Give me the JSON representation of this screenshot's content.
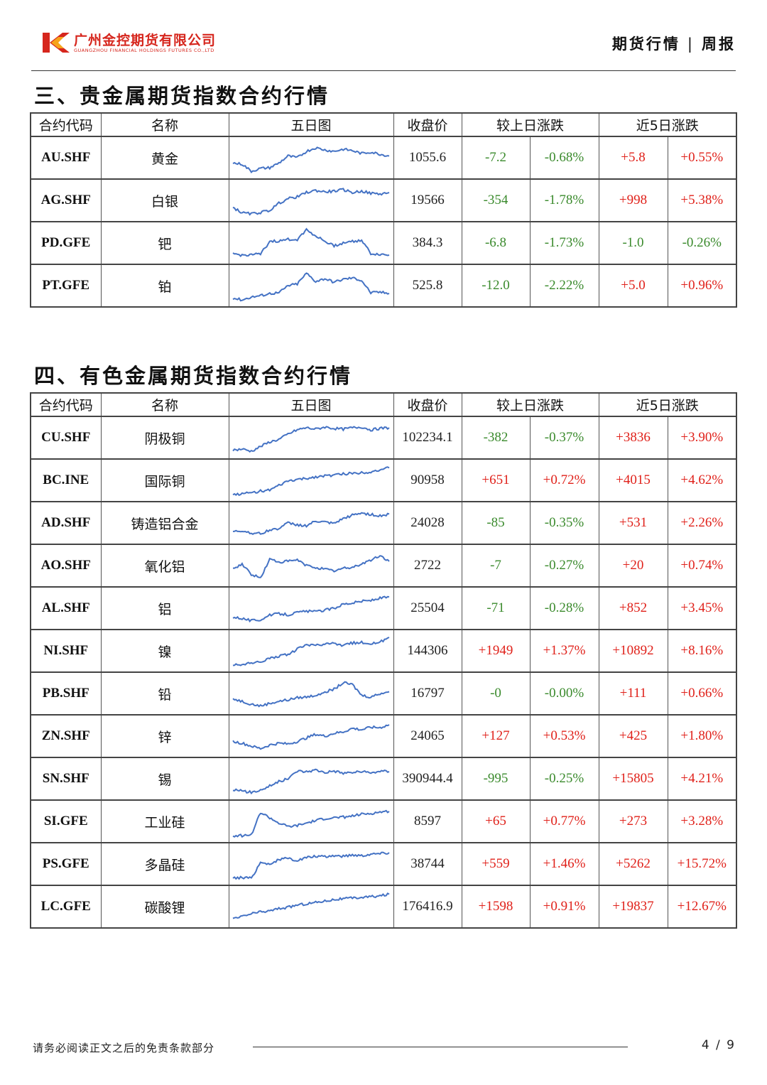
{
  "header": {
    "company_cn": "广州金控期货有限公司",
    "company_en": "GUANGZHOU FINANCIAL HOLDINGS FUTURES CO.,LTD",
    "report_type": "期货行情",
    "separator": "|",
    "frequency": "周报"
  },
  "colors": {
    "up": "#e0211a",
    "down": "#3a8a2c",
    "sparkline": "#4472c4",
    "brand": "#d6261d"
  },
  "columns": [
    "合约代码",
    "名称",
    "五日图",
    "收盘价",
    "较上日涨跌",
    "近5日涨跌"
  ],
  "sections": [
    {
      "title": "三、贵金属期货指数合约行情",
      "rows": [
        {
          "code": "AU.SHF",
          "name": "黄金",
          "close": "1055.6",
          "d_chg": "-7.2",
          "d_pct": "-0.68%",
          "w_chg": "+5.8",
          "w_pct": "+0.55%",
          "spark": [
            0.35,
            0.32,
            0.12,
            0.2,
            0.22,
            0.35,
            0.55,
            0.5,
            0.68,
            0.78,
            0.72,
            0.68,
            0.74,
            0.7,
            0.62,
            0.66,
            0.6,
            0.55
          ]
        },
        {
          "code": "AG.SHF",
          "name": "白银",
          "close": "19566",
          "d_chg": "-354",
          "d_pct": "-1.78%",
          "w_chg": "+998",
          "w_pct": "+5.38%",
          "spark": [
            0.3,
            0.15,
            0.12,
            0.16,
            0.22,
            0.42,
            0.55,
            0.6,
            0.72,
            0.78,
            0.74,
            0.76,
            0.8,
            0.72,
            0.76,
            0.7,
            0.68,
            0.72
          ]
        },
        {
          "code": "PD.GFE",
          "name": "钯",
          "close": "384.3",
          "d_chg": "-6.8",
          "d_pct": "-1.73%",
          "w_chg": "-1.0",
          "w_pct": "-0.26%",
          "spark": [
            0.2,
            0.15,
            0.18,
            0.18,
            0.55,
            0.55,
            0.6,
            0.6,
            0.88,
            0.7,
            0.55,
            0.42,
            0.5,
            0.55,
            0.58,
            0.2,
            0.18,
            0.16
          ]
        },
        {
          "code": "PT.GFE",
          "name": "铂",
          "close": "525.8",
          "d_chg": "-12.0",
          "d_pct": "-2.22%",
          "w_chg": "+5.0",
          "w_pct": "+0.96%",
          "spark": [
            0.15,
            0.1,
            0.18,
            0.22,
            0.28,
            0.3,
            0.5,
            0.55,
            0.85,
            0.62,
            0.7,
            0.6,
            0.68,
            0.72,
            0.65,
            0.3,
            0.32,
            0.28
          ]
        }
      ]
    },
    {
      "title": "四、有色金属期货指数合约行情",
      "rows": [
        {
          "code": "CU.SHF",
          "name": "阴极铜",
          "close": "102234.1",
          "d_chg": "-382",
          "d_pct": "-0.37%",
          "w_chg": "+3836",
          "w_pct": "+3.90%",
          "spark": [
            0.15,
            0.18,
            0.12,
            0.25,
            0.38,
            0.45,
            0.6,
            0.72,
            0.78,
            0.74,
            0.8,
            0.76,
            0.74,
            0.78,
            0.8,
            0.72,
            0.76,
            0.78
          ]
        },
        {
          "code": "BC.INE",
          "name": "国际铜",
          "close": "90958",
          "d_chg": "+651",
          "d_pct": "+0.72%",
          "w_chg": "+4015",
          "w_pct": "+4.62%",
          "spark": [
            0.1,
            0.12,
            0.15,
            0.2,
            0.22,
            0.35,
            0.48,
            0.52,
            0.55,
            0.6,
            0.62,
            0.65,
            0.68,
            0.7,
            0.72,
            0.74,
            0.8,
            0.85
          ]
        },
        {
          "code": "AD.SHF",
          "name": "铸造铝合金",
          "close": "24028",
          "d_chg": "-85",
          "d_pct": "-0.35%",
          "w_chg": "+531",
          "w_pct": "+2.26%",
          "spark": [
            0.25,
            0.28,
            0.22,
            0.2,
            0.3,
            0.35,
            0.5,
            0.45,
            0.42,
            0.55,
            0.52,
            0.48,
            0.62,
            0.72,
            0.78,
            0.74,
            0.7,
            0.75
          ]
        },
        {
          "code": "AO.SHF",
          "name": "氧化铝",
          "close": "2722",
          "d_chg": "-7",
          "d_pct": "-0.27%",
          "w_chg": "+20",
          "w_pct": "+0.74%",
          "spark": [
            0.4,
            0.55,
            0.25,
            0.15,
            0.68,
            0.6,
            0.62,
            0.66,
            0.5,
            0.45,
            0.4,
            0.35,
            0.42,
            0.45,
            0.55,
            0.65,
            0.78,
            0.62
          ]
        },
        {
          "code": "AL.SHF",
          "name": "铝",
          "close": "25504",
          "d_chg": "-71",
          "d_pct": "-0.28%",
          "w_chg": "+852",
          "w_pct": "+3.45%",
          "spark": [
            0.25,
            0.22,
            0.15,
            0.18,
            0.3,
            0.35,
            0.32,
            0.38,
            0.42,
            0.4,
            0.45,
            0.5,
            0.62,
            0.65,
            0.7,
            0.72,
            0.78,
            0.82
          ]
        },
        {
          "code": "NI.SHF",
          "name": "镍",
          "close": "144306",
          "d_chg": "+1949",
          "d_pct": "+1.37%",
          "w_chg": "+10892",
          "w_pct": "+8.16%",
          "spark": [
            0.1,
            0.12,
            0.15,
            0.18,
            0.3,
            0.35,
            0.4,
            0.55,
            0.68,
            0.65,
            0.68,
            0.7,
            0.66,
            0.72,
            0.74,
            0.7,
            0.75,
            0.88
          ]
        },
        {
          "code": "PB.SHF",
          "name": "铅",
          "close": "16797",
          "d_chg": "-0",
          "d_pct": "-0.00%",
          "w_chg": "+111",
          "w_pct": "+0.66%",
          "spark": [
            0.35,
            0.28,
            0.2,
            0.15,
            0.22,
            0.28,
            0.32,
            0.38,
            0.4,
            0.45,
            0.55,
            0.62,
            0.8,
            0.75,
            0.45,
            0.4,
            0.5,
            0.55
          ]
        },
        {
          "code": "ZN.SHF",
          "name": "锌",
          "close": "24065",
          "d_chg": "+127",
          "d_pct": "+0.53%",
          "w_chg": "+425",
          "w_pct": "+1.80%",
          "spark": [
            0.35,
            0.3,
            0.22,
            0.15,
            0.25,
            0.3,
            0.28,
            0.35,
            0.45,
            0.55,
            0.5,
            0.58,
            0.62,
            0.72,
            0.68,
            0.75,
            0.74,
            0.82
          ]
        },
        {
          "code": "SN.SHF",
          "name": "锡",
          "close": "390944.4",
          "d_chg": "-995",
          "d_pct": "-0.25%",
          "w_chg": "+15805",
          "w_pct": "+4.21%",
          "spark": [
            0.2,
            0.15,
            0.12,
            0.18,
            0.3,
            0.42,
            0.5,
            0.72,
            0.7,
            0.75,
            0.68,
            0.72,
            0.66,
            0.68,
            0.7,
            0.66,
            0.72,
            0.7
          ]
        },
        {
          "code": "SI.GFE",
          "name": "工业硅",
          "close": "8597",
          "d_chg": "+65",
          "d_pct": "+0.77%",
          "w_chg": "+273",
          "w_pct": "+3.28%",
          "spark": [
            0.1,
            0.1,
            0.12,
            0.75,
            0.6,
            0.45,
            0.35,
            0.38,
            0.45,
            0.52,
            0.58,
            0.6,
            0.62,
            0.65,
            0.7,
            0.72,
            0.76,
            0.78
          ]
        },
        {
          "code": "PS.GFE",
          "name": "多晶硅",
          "close": "38744",
          "d_chg": "+559",
          "d_pct": "+1.46%",
          "w_chg": "+5262",
          "w_pct": "+15.72%",
          "spark": [
            0.1,
            0.12,
            0.1,
            0.55,
            0.5,
            0.62,
            0.66,
            0.6,
            0.68,
            0.72,
            0.7,
            0.74,
            0.72,
            0.76,
            0.74,
            0.78,
            0.8,
            0.82
          ]
        },
        {
          "code": "LC.GFE",
          "name": "碳酸锂",
          "close": "176416.9",
          "d_chg": "+1598",
          "d_pct": "+0.91%",
          "w_chg": "+19837",
          "w_pct": "+12.67%",
          "spark": [
            0.15,
            0.22,
            0.3,
            0.35,
            0.38,
            0.45,
            0.48,
            0.55,
            0.58,
            0.62,
            0.66,
            0.7,
            0.72,
            0.74,
            0.76,
            0.78,
            0.8,
            0.85
          ]
        }
      ]
    }
  ],
  "footer": {
    "disclaimer": "请务必阅读正文之后的免责条款部分",
    "page": "4 / 9"
  }
}
